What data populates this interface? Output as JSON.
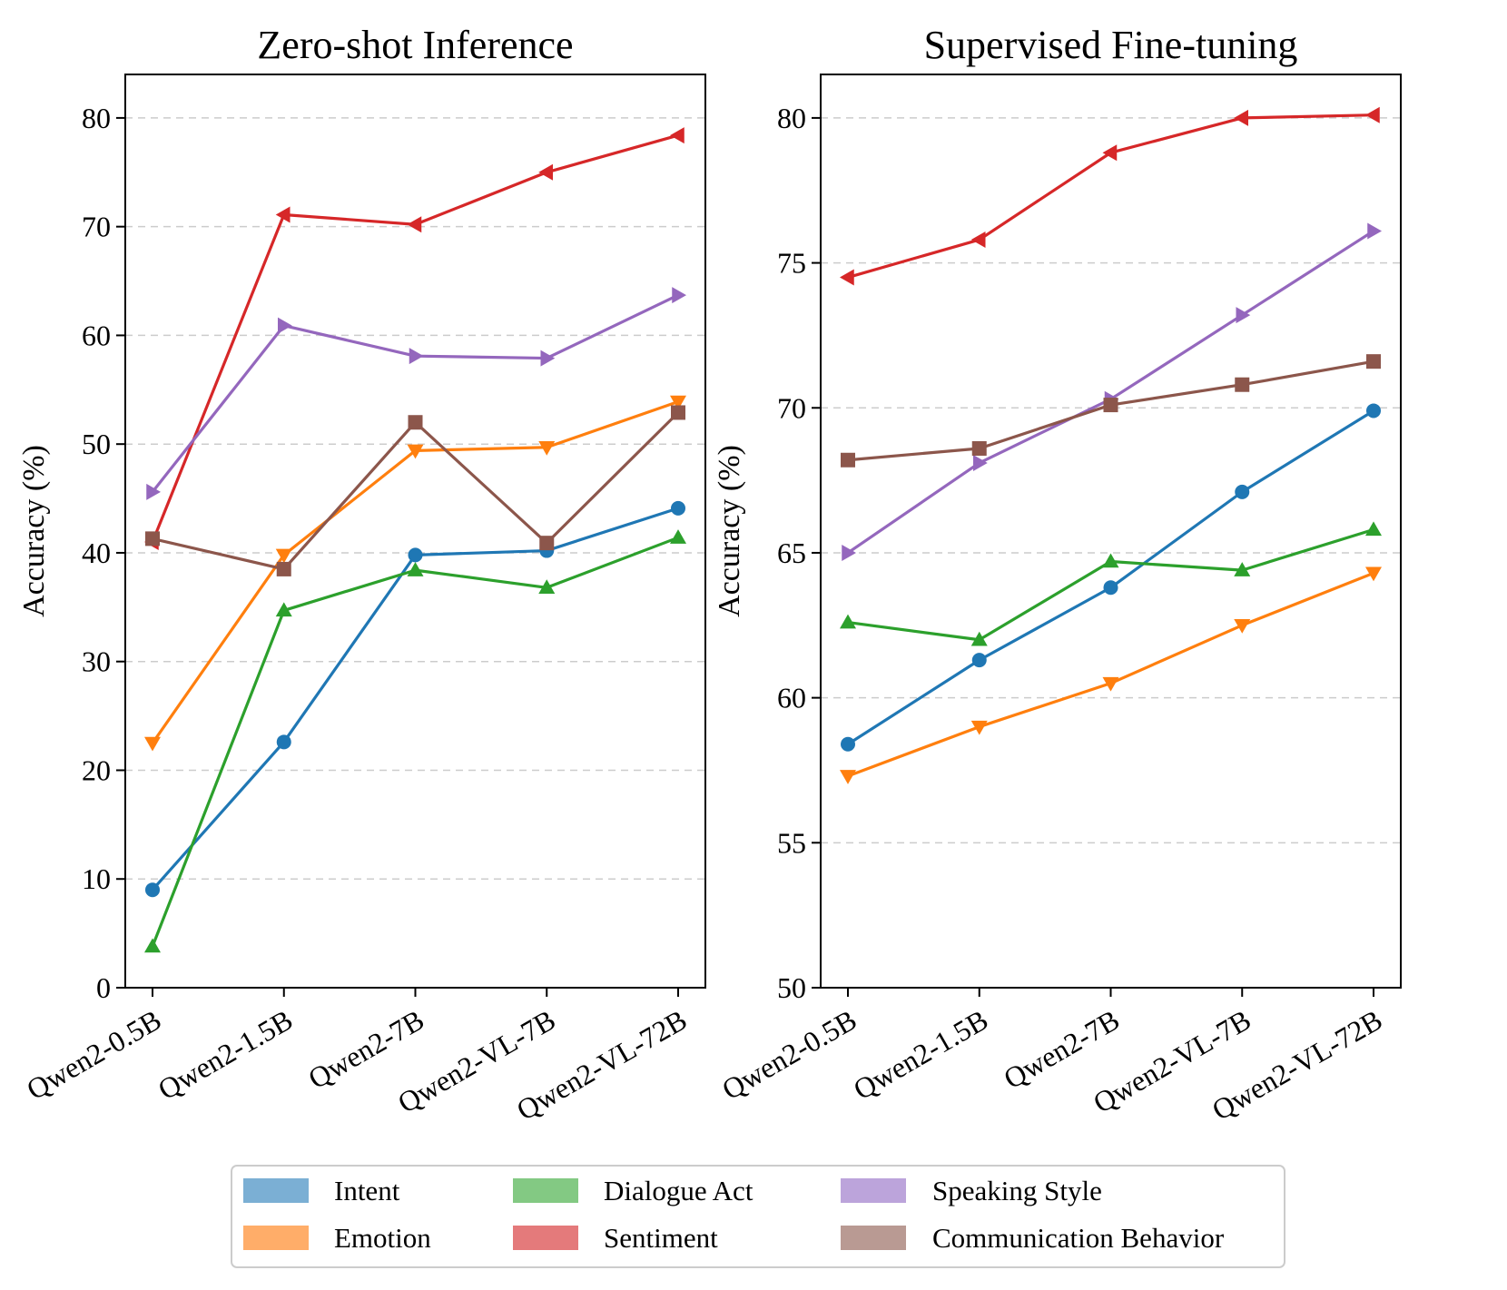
{
  "chart_data": [
    {
      "type": "line",
      "title": "Zero-shot Inference",
      "xlabel": "",
      "ylabel": "Accuracy (%)",
      "categories": [
        "Qwen2-0.5B",
        "Qwen2-1.5B",
        "Qwen2-7B",
        "Qwen2-VL-7B",
        "Qwen2-VL-72B"
      ],
      "ylim": [
        0,
        84
      ],
      "yticks": [
        0,
        10,
        20,
        30,
        40,
        50,
        60,
        70,
        80
      ],
      "grid": true,
      "series": [
        {
          "name": "Intent",
          "color": "#1f77b4",
          "marker": "circle",
          "values": [
            9.0,
            22.6,
            39.8,
            40.2,
            44.1
          ]
        },
        {
          "name": "Emotion",
          "color": "#ff7f0e",
          "marker": "triangle-down",
          "values": [
            22.5,
            39.8,
            49.4,
            49.7,
            53.9
          ]
        },
        {
          "name": "Dialogue Act",
          "color": "#2ca02c",
          "marker": "triangle-up",
          "values": [
            3.8,
            34.7,
            38.4,
            36.8,
            41.4
          ]
        },
        {
          "name": "Sentiment",
          "color": "#d62728",
          "marker": "triangle-left",
          "values": [
            41.0,
            71.1,
            70.2,
            75.0,
            78.4
          ]
        },
        {
          "name": "Speaking Style",
          "color": "#9467bd",
          "marker": "triangle-right",
          "values": [
            45.6,
            60.9,
            58.1,
            57.9,
            63.7
          ]
        },
        {
          "name": "Communication Behavior",
          "color": "#8c564b",
          "marker": "square",
          "values": [
            41.3,
            38.5,
            52.0,
            40.9,
            52.9
          ]
        }
      ]
    },
    {
      "type": "line",
      "title": "Supervised Fine-tuning",
      "xlabel": "",
      "ylabel": "Accuracy (%)",
      "categories": [
        "Qwen2-0.5B",
        "Qwen2-1.5B",
        "Qwen2-7B",
        "Qwen2-VL-7B",
        "Qwen2-VL-72B"
      ],
      "ylim": [
        50,
        81.5
      ],
      "yticks": [
        50,
        55,
        60,
        65,
        70,
        75,
        80
      ],
      "grid": true,
      "series": [
        {
          "name": "Intent",
          "color": "#1f77b4",
          "marker": "circle",
          "values": [
            58.4,
            61.3,
            63.8,
            67.1,
            69.9
          ]
        },
        {
          "name": "Emotion",
          "color": "#ff7f0e",
          "marker": "triangle-down",
          "values": [
            57.3,
            59.0,
            60.5,
            62.5,
            64.3
          ]
        },
        {
          "name": "Dialogue Act",
          "color": "#2ca02c",
          "marker": "triangle-up",
          "values": [
            62.6,
            62.0,
            64.7,
            64.4,
            65.8
          ]
        },
        {
          "name": "Sentiment",
          "color": "#d62728",
          "marker": "triangle-left",
          "values": [
            74.5,
            75.8,
            78.8,
            80.0,
            80.1
          ]
        },
        {
          "name": "Speaking Style",
          "color": "#9467bd",
          "marker": "triangle-right",
          "values": [
            65.0,
            68.1,
            70.3,
            73.2,
            76.1
          ]
        },
        {
          "name": "Communication Behavior",
          "color": "#8c564b",
          "marker": "square",
          "values": [
            68.2,
            68.6,
            70.1,
            70.8,
            71.6
          ]
        }
      ]
    }
  ],
  "legend": {
    "placement": "bottom-center",
    "items": [
      {
        "label": "Intent",
        "color": "#7bafd4"
      },
      {
        "label": "Dialogue Act",
        "color": "#83c983"
      },
      {
        "label": "Speaking Style",
        "color": "#bca4db"
      },
      {
        "label": "Emotion",
        "color": "#ffad69"
      },
      {
        "label": "Sentiment",
        "color": "#e47a7b"
      },
      {
        "label": "Communication Behavior",
        "color": "#b99a93"
      }
    ]
  }
}
